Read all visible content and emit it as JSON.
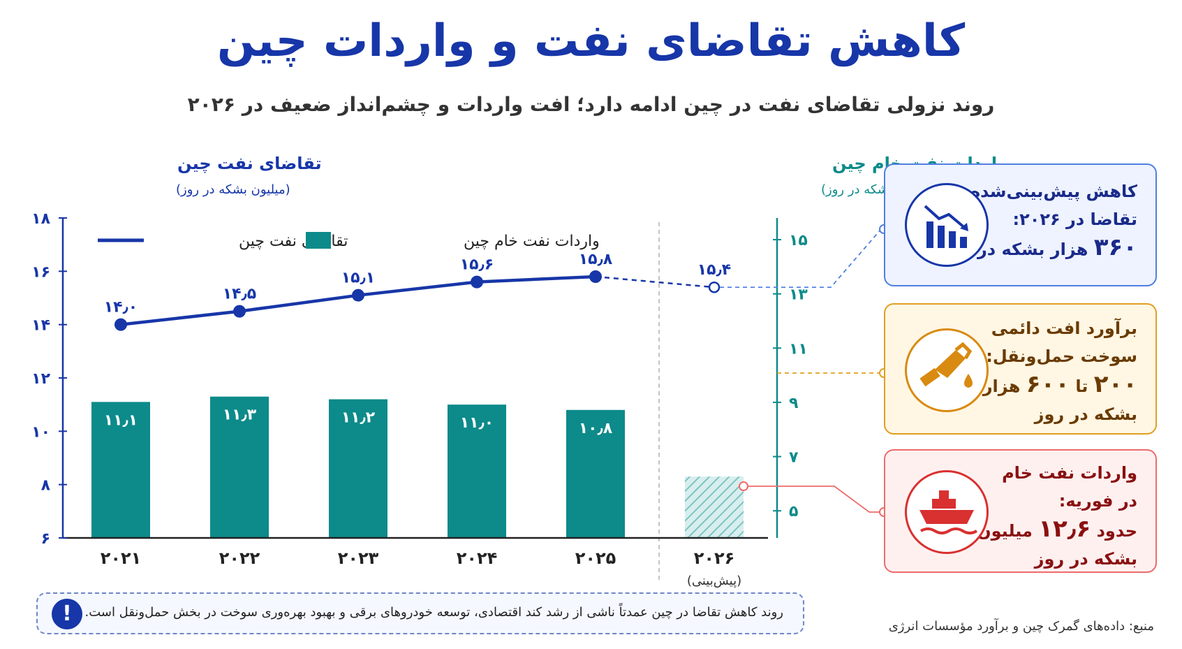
{
  "title": "کاهش تقاضای نفت و واردات چین",
  "subtitle": "روند نزولی تقاضای نفت در چین ادامه دارد؛ افت واردات و چشم‌انداز ضعیف در ۲۰۲۶",
  "chart_data": {
    "type": "bar+line",
    "categories": [
      "۲۰۲۱",
      "۲۰۲۲",
      "۲۰۲۳",
      "۲۰۲۴",
      "۲۰۲۵",
      "۲۰۲۶"
    ],
    "forecast_sublabel": "(پیش‌بینی)",
    "left_axis": {
      "title": "تقاضای نفت چین",
      "unit": "(میلیون بشکه در روز)",
      "range": [
        6,
        18
      ],
      "ticks": [
        6,
        8,
        10,
        12,
        14,
        16,
        18
      ],
      "tick_labels": [
        "۶",
        "۸",
        "۱۰",
        "۱۲",
        "۱۴",
        "۱۶",
        "۱۸"
      ],
      "color": "#1736a8"
    },
    "right_axis": {
      "title": "واردات نفت خام چین",
      "unit": "(میلیون بشکه در روز)",
      "range": [
        4,
        15.8
      ],
      "ticks": [
        5,
        7,
        9,
        11,
        13,
        15
      ],
      "tick_labels": [
        "۵",
        "۷",
        "۹",
        "۱۱",
        "۱۳",
        "۱۵"
      ],
      "color": "#0d8a8a"
    },
    "series": [
      {
        "name": "تقاضای نفت چین",
        "kind": "line",
        "axis": "left",
        "values": [
          14.0,
          14.5,
          15.1,
          15.6,
          15.8,
          15.4
        ],
        "labels": [
          "۱۴٫۰",
          "۱۴٫۵",
          "۱۵٫۱",
          "۱۵٫۶",
          "۱۵٫۸",
          "۱۵٫۴"
        ],
        "forecast_from_index": 5,
        "color": "#1736a8"
      },
      {
        "name": "واردات نفت خام چین",
        "kind": "bar",
        "axis": "left",
        "values": [
          11.1,
          11.3,
          11.2,
          11.0,
          10.8,
          8.3
        ],
        "labels": [
          "۱۱٫۱",
          "۱۱٫۳",
          "۱۱٫۲",
          "۱۱٫۰",
          "۱۰٫۸",
          ""
        ],
        "forecast_from_index": 5,
        "color": "#0d8a8a"
      }
    ],
    "legend": [
      {
        "label": "تقاضای نفت چین",
        "kind": "line",
        "color": "#1736a8"
      },
      {
        "label": "واردات نفت خام چین",
        "kind": "bar",
        "color": "#0d8a8a"
      }
    ],
    "legend_position": "top-left",
    "grid": false
  },
  "cards": [
    {
      "icon": "declining-bar-chart-icon",
      "color": "#1736a8",
      "lines": [
        "کاهش پیش‌بینی‌شده",
        "تقاضا در ۲۰۲۶:"
      ],
      "value": "۳۶۰",
      "tail": "هزار بشکه در روز"
    },
    {
      "icon": "fuel-nozzle-icon",
      "color": "#d98a10",
      "lines": [
        "برآورد افت دائمی",
        "سوخت حمل‌ونقل:"
      ],
      "value_a": "۲۰۰",
      "between": "تا",
      "value_b": "۶۰۰",
      "unit_word": "هزار",
      "tail": "بشکه در روز"
    },
    {
      "icon": "oil-tanker-icon",
      "color": "#d93030",
      "lines": [
        "واردات نفت خام",
        "در فوریه:"
      ],
      "prefix": "حدود",
      "value": "۱۲٫۶",
      "unit_word": "میلیون",
      "tail": "بشکه در روز"
    }
  ],
  "note": {
    "icon": "exclamation-icon",
    "icon_glyph": "!",
    "text": "روند کاهش تقاضا در چین عمدتاً ناشی از رشد کند اقتصادی، توسعه خودروهای برقی و بهبود بهره‌وری سوخت در بخش حمل‌ونقل است."
  },
  "source": "منبع: داده‌های گمرک چین و برآورد مؤسسات انرژی"
}
